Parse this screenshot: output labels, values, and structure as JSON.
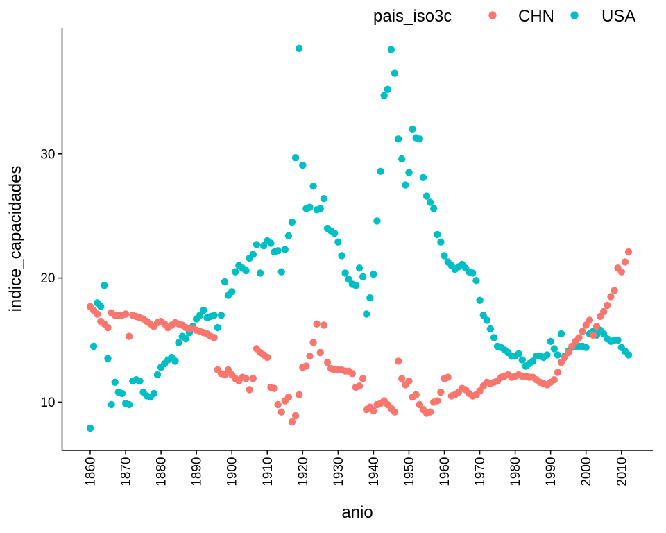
{
  "legend": {
    "title": "pais_iso3c",
    "series": [
      {
        "label": "CHN",
        "color": "#F8766D"
      },
      {
        "label": "USA",
        "color": "#00BFC4"
      }
    ]
  },
  "axes": {
    "x": {
      "label": "anio",
      "tick_labels": [
        "1860",
        "1870",
        "1880",
        "1890",
        "1900",
        "1910",
        "1920",
        "1930",
        "1940",
        "1950",
        "1960",
        "1970",
        "1980",
        "1990",
        "2000",
        "2010"
      ]
    },
    "y": {
      "label": "indice_capacidades",
      "tick_labels": [
        "10",
        "20",
        "30"
      ],
      "tick_values": [
        10,
        20,
        30
      ]
    }
  },
  "chart_data": {
    "type": "scatter",
    "title": "",
    "xlabel": "anio",
    "ylabel": "indice_capacidades",
    "xlim": [
      1852.4,
      2019.6
    ],
    "ylim": [
      6.1,
      40.2
    ],
    "x_ticks": [
      1860,
      1870,
      1880,
      1890,
      1900,
      1910,
      1920,
      1930,
      1940,
      1950,
      1960,
      1970,
      1980,
      1990,
      2000,
      2010
    ],
    "y_ticks": [
      10,
      20,
      30
    ],
    "grid": false,
    "legend_position": "top",
    "point_radius_px": 5.2,
    "years": [
      1860,
      1861,
      1862,
      1863,
      1864,
      1865,
      1866,
      1867,
      1868,
      1869,
      1870,
      1871,
      1872,
      1873,
      1874,
      1875,
      1876,
      1877,
      1878,
      1879,
      1880,
      1881,
      1882,
      1883,
      1884,
      1885,
      1886,
      1887,
      1888,
      1889,
      1890,
      1891,
      1892,
      1893,
      1894,
      1895,
      1896,
      1897,
      1898,
      1899,
      1900,
      1901,
      1902,
      1903,
      1904,
      1905,
      1906,
      1907,
      1908,
      1909,
      1910,
      1911,
      1912,
      1913,
      1914,
      1915,
      1916,
      1917,
      1918,
      1919,
      1920,
      1921,
      1922,
      1923,
      1924,
      1925,
      1926,
      1927,
      1928,
      1929,
      1930,
      1931,
      1932,
      1933,
      1934,
      1935,
      1936,
      1937,
      1938,
      1939,
      1940,
      1941,
      1942,
      1943,
      1944,
      1945,
      1946,
      1947,
      1948,
      1949,
      1950,
      1951,
      1952,
      1953,
      1954,
      1955,
      1956,
      1957,
      1958,
      1959,
      1960,
      1961,
      1962,
      1963,
      1964,
      1965,
      1966,
      1967,
      1968,
      1969,
      1970,
      1971,
      1972,
      1973,
      1974,
      1975,
      1976,
      1977,
      1978,
      1979,
      1980,
      1981,
      1982,
      1983,
      1984,
      1985,
      1986,
      1987,
      1988,
      1989,
      1990,
      1991,
      1992,
      1993,
      1994,
      1995,
      1996,
      1997,
      1998,
      1999,
      2000,
      2001,
      2002,
      2003,
      2004,
      2005,
      2006,
      2007,
      2008,
      2009,
      2010,
      2011,
      2012
    ],
    "series": [
      {
        "name": "CHN",
        "color": "#F8766D",
        "values": [
          17.7,
          17.4,
          17.1,
          16.5,
          16.3,
          16.0,
          17.2,
          17.0,
          17.0,
          17.0,
          17.1,
          15.3,
          17.0,
          16.9,
          16.8,
          16.7,
          16.5,
          16.3,
          16.1,
          16.4,
          16.5,
          16.3,
          16.0,
          16.2,
          16.4,
          16.3,
          16.2,
          16.0,
          15.9,
          15.9,
          15.8,
          15.7,
          15.6,
          15.5,
          15.3,
          15.2,
          12.6,
          12.3,
          12.2,
          12.6,
          12.2,
          11.9,
          11.7,
          12.0,
          11.9,
          11.0,
          11.9,
          14.3,
          14.0,
          13.8,
          13.6,
          11.2,
          11.1,
          9.8,
          9.2,
          10.1,
          10.4,
          8.4,
          8.9,
          10.6,
          12.8,
          12.9,
          13.7,
          14.8,
          16.3,
          14.0,
          16.2,
          13.2,
          12.7,
          12.6,
          12.6,
          12.6,
          12.5,
          12.5,
          12.3,
          11.2,
          11.3,
          11.9,
          9.4,
          9.6,
          9.3,
          9.8,
          9.9,
          10.1,
          9.8,
          9.5,
          9.2,
          13.3,
          11.9,
          11.4,
          11.7,
          10.4,
          10.6,
          9.8,
          9.4,
          9.1,
          9.2,
          10.0,
          10.1,
          10.8,
          11.9,
          12.0,
          10.5,
          10.6,
          10.8,
          11.1,
          11.0,
          10.7,
          10.5,
          10.6,
          10.9,
          11.3,
          11.6,
          11.5,
          11.6,
          11.7,
          12.0,
          12.1,
          12.2,
          12.0,
          12.1,
          12.2,
          12.1,
          12.1,
          12.0,
          12.0,
          11.8,
          11.6,
          11.5,
          11.4,
          11.6,
          11.8,
          12.4,
          13.2,
          13.6,
          14.0,
          14.5,
          14.9,
          15.2,
          15.7,
          16.2,
          16.6,
          15.4,
          16.1,
          16.9,
          17.3,
          17.8,
          18.5,
          19.0,
          20.8,
          20.5,
          21.3,
          22.1
        ]
      },
      {
        "name": "USA",
        "color": "#00BFC4",
        "values": [
          7.9,
          14.5,
          18.0,
          17.7,
          19.4,
          13.5,
          9.8,
          11.6,
          10.8,
          10.7,
          9.9,
          9.8,
          11.7,
          11.8,
          11.7,
          10.8,
          10.5,
          10.4,
          10.7,
          12.2,
          12.8,
          13.1,
          13.4,
          13.6,
          13.3,
          14.8,
          15.3,
          15.1,
          15.6,
          16.1,
          16.7,
          17.0,
          17.4,
          16.8,
          16.9,
          17.0,
          16.0,
          17.0,
          19.7,
          18.6,
          18.9,
          20.5,
          21.0,
          20.8,
          20.6,
          21.6,
          21.9,
          22.7,
          20.4,
          22.6,
          23.0,
          22.8,
          22.1,
          22.2,
          20.5,
          22.3,
          23.4,
          24.5,
          29.7,
          38.5,
          29.1,
          25.6,
          25.7,
          27.4,
          25.5,
          25.6,
          26.4,
          24.0,
          23.8,
          23.6,
          22.9,
          21.8,
          20.4,
          19.9,
          19.5,
          19.4,
          20.8,
          20.1,
          17.1,
          18.4,
          20.3,
          24.6,
          28.6,
          34.7,
          35.2,
          38.4,
          36.5,
          31.2,
          29.6,
          27.5,
          28.5,
          32.0,
          31.3,
          31.2,
          28.1,
          26.6,
          26.1,
          25.6,
          23.5,
          22.9,
          21.8,
          21.3,
          21.0,
          20.7,
          20.9,
          21.1,
          20.8,
          20.5,
          20.4,
          19.8,
          18.2,
          17.0,
          16.6,
          15.9,
          15.2,
          14.5,
          14.4,
          14.2,
          14.0,
          13.7,
          13.7,
          13.9,
          13.4,
          12.9,
          13.1,
          13.3,
          13.7,
          13.7,
          13.6,
          13.8,
          14.9,
          14.3,
          13.8,
          15.5,
          13.7,
          14.1,
          14.4,
          14.5,
          14.5,
          14.5,
          14.4,
          15.5,
          15.7,
          15.4,
          15.8,
          15.5,
          15.1,
          14.9,
          15.0,
          15.0,
          14.4,
          14.1,
          13.8
        ]
      }
    ]
  }
}
